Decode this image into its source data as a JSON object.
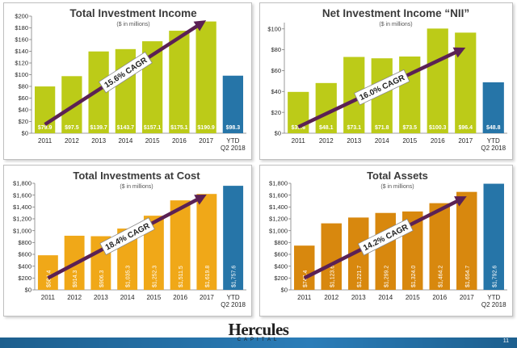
{
  "colors": {
    "gold": "#f0a818",
    "orange": "#d8880e",
    "lime": "#bccb18",
    "blue": "#2675a8",
    "arrow": "#5b2154",
    "title": "#3a3a3a"
  },
  "footer": {
    "logo_text": "Hercules",
    "logo_subtext": "CAPITAL",
    "page_number": "11"
  },
  "chart_data": [
    {
      "type": "bar",
      "title": "Total Investment Income",
      "subtitle": "($ in millions)",
      "categories": [
        "2011",
        "2012",
        "2013",
        "2014",
        "2015",
        "2016",
        "2017",
        "YTD Q2 2018"
      ],
      "values": [
        79.9,
        97.5,
        139.7,
        143.7,
        157.1,
        175.1,
        190.9,
        98.3
      ],
      "data_labels": [
        "$79.9",
        "$97.5",
        "$139.7",
        "$143.7",
        "$157.1",
        "$175.1",
        "$190.9",
        "$98.3"
      ],
      "yticks": [
        0,
        20,
        40,
        60,
        80,
        100,
        120,
        140,
        160,
        180,
        200
      ],
      "ytick_labels": [
        "$0",
        "$20",
        "$40",
        "$60",
        "$80",
        "$100",
        "$120",
        "$140",
        "$160",
        "$180",
        "$200"
      ],
      "ylim": [
        0,
        200
      ],
      "cagr_label": "15.6% CAGR",
      "bar_colors": [
        "lime",
        "lime",
        "lime",
        "lime",
        "lime",
        "lime",
        "lime",
        "blue"
      ],
      "label_rotated": false,
      "arrow": {
        "from": [
          0,
          15
        ],
        "to": [
          6,
          193
        ]
      }
    },
    {
      "type": "bar",
      "title": "Net Investment Income “NII”",
      "subtitle": "($ in millions)",
      "categories": [
        "2011",
        "2012",
        "2013",
        "2014",
        "2015",
        "2016",
        "2017",
        "YTD Q2 2018"
      ],
      "values": [
        39.6,
        48.1,
        73.1,
        71.8,
        73.5,
        100.3,
        96.4,
        48.8
      ],
      "data_labels": [
        "$39.6",
        "$48.1",
        "$73.1",
        "$71.8",
        "$73.5",
        "$100.3",
        "$96.4",
        "$48.8"
      ],
      "yticks": [
        0,
        20,
        40,
        60,
        80,
        100
      ],
      "ytick_labels": [
        "$0",
        "$20",
        "$40",
        "$60",
        "$80",
        "$100"
      ],
      "ylim": [
        0,
        106
      ],
      "cagr_label": "16.0% CAGR",
      "bar_colors": [
        "lime",
        "lime",
        "lime",
        "lime",
        "lime",
        "lime",
        "lime",
        "blue"
      ],
      "label_rotated": false,
      "arrow": {
        "from": [
          0,
          6
        ],
        "to": [
          6,
          82
        ]
      }
    },
    {
      "type": "bar",
      "title": "Total Investments at Cost",
      "subtitle": "($ in millions)",
      "categories": [
        "2011",
        "2012",
        "2013",
        "2014",
        "2015",
        "2016",
        "2017",
        "YTD Q2 2018"
      ],
      "values": [
        584.4,
        914.3,
        906.3,
        1035.3,
        1252.3,
        1511.5,
        1619.8,
        1757.6
      ],
      "data_labels": [
        "$584.4",
        "$914.3",
        "$906.3",
        "$1,035.3",
        "$1,252.3",
        "$1,511.5",
        "$1,619.8",
        "$1,757.6"
      ],
      "yticks": [
        0,
        200,
        400,
        600,
        800,
        1000,
        1200,
        1400,
        1600,
        1800
      ],
      "ytick_labels": [
        "$0",
        "$200",
        "$400",
        "$600",
        "$800",
        "$1,000",
        "$1,200",
        "$1,400",
        "$1,600",
        "$1,800"
      ],
      "ylim": [
        0,
        1800
      ],
      "cagr_label": "18.4% CAGR",
      "bar_colors": [
        "gold",
        "gold",
        "gold",
        "gold",
        "gold",
        "gold",
        "gold",
        "blue"
      ],
      "label_rotated": true,
      "arrow": {
        "from": [
          0,
          200
        ],
        "to": [
          6,
          1610
        ]
      }
    },
    {
      "type": "bar",
      "title": "Total Assets",
      "subtitle": "($ in millions)",
      "categories": [
        "2011",
        "2012",
        "2013",
        "2014",
        "2015",
        "2016",
        "2017",
        "YTD Q2 2018"
      ],
      "values": [
        747.4,
        1123.6,
        1221.7,
        1299.2,
        1324.0,
        1464.2,
        1654.7,
        1792.6
      ],
      "data_labels": [
        "$747.4",
        "$1,123.6",
        "$1,221.7",
        "$1,299.2",
        "$1,324.0",
        "$1,464.2",
        "$1,654.7",
        "$1,792.6"
      ],
      "yticks": [
        0,
        200,
        400,
        600,
        800,
        1000,
        1200,
        1400,
        1600,
        1800
      ],
      "ytick_labels": [
        "$0",
        "$200",
        "$400",
        "$600",
        "$800",
        "$1,000",
        "$1,200",
        "$1,400",
        "$1,600",
        "$1,800"
      ],
      "ylim": [
        0,
        1800
      ],
      "cagr_label": "14.2% CAGR",
      "bar_colors": [
        "orange",
        "orange",
        "orange",
        "orange",
        "orange",
        "orange",
        "orange",
        "blue"
      ],
      "label_rotated": true,
      "arrow": {
        "from": [
          0,
          200
        ],
        "to": [
          6,
          1580
        ]
      }
    }
  ]
}
